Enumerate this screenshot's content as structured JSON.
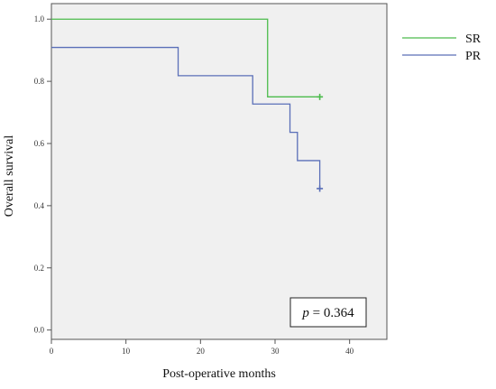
{
  "chart_data": {
    "type": "line",
    "subtype": "kaplan-meier-step",
    "xlabel": "Post-operative months",
    "ylabel": "Overall survival",
    "xlim": [
      0,
      45
    ],
    "ylim": [
      -0.03,
      1.05
    ],
    "xticks": [
      0,
      10,
      20,
      30,
      40
    ],
    "yticks": [
      0.0,
      0.2,
      0.4,
      0.6,
      0.8,
      1.0
    ],
    "xtick_labels": [
      "0",
      "10",
      "20",
      "30",
      "40"
    ],
    "ytick_labels": [
      "0.0",
      "0.2",
      "0.4",
      "0.6",
      "0.8",
      "1.0"
    ],
    "grid": false,
    "legend_position": "outside-top-right",
    "series": [
      {
        "name": "SR",
        "color": "#4cbb4c",
        "steps": [
          [
            0,
            1.0
          ],
          [
            29,
            0.75
          ],
          [
            36,
            0.75
          ]
        ],
        "censored": [
          [
            36,
            0.75
          ]
        ]
      },
      {
        "name": "PR",
        "color": "#5a6fb8",
        "steps": [
          [
            0,
            0.909
          ],
          [
            17,
            0.818
          ],
          [
            27,
            0.727
          ],
          [
            32,
            0.636
          ],
          [
            33,
            0.545
          ],
          [
            36,
            0.455
          ]
        ],
        "censored": [
          [
            36,
            0.455
          ]
        ]
      }
    ],
    "annotation": {
      "italic": "p",
      "rest": " = 0.364"
    }
  }
}
